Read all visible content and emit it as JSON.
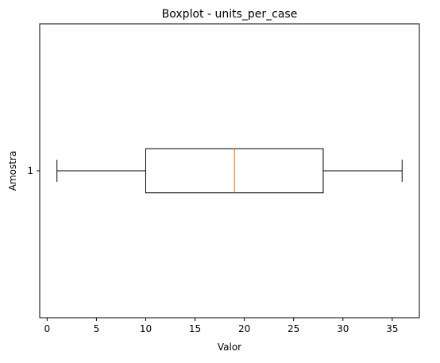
{
  "chart_data": {
    "type": "boxplot",
    "orientation": "horizontal",
    "title": "Boxplot - units_per_case",
    "xlabel": "Valor",
    "ylabel": "Amostra",
    "xlim": [
      -0.75,
      37.75
    ],
    "xticks": [
      0,
      5,
      10,
      15,
      20,
      25,
      30,
      35
    ],
    "categories": [
      "1"
    ],
    "boxes": [
      {
        "category": "1",
        "whisker_low": 1,
        "q1": 10,
        "median": 19,
        "q3": 28,
        "whisker_high": 36
      }
    ],
    "grid": false,
    "colors": {
      "box": "#000000",
      "median": "#ff7f0e"
    }
  }
}
